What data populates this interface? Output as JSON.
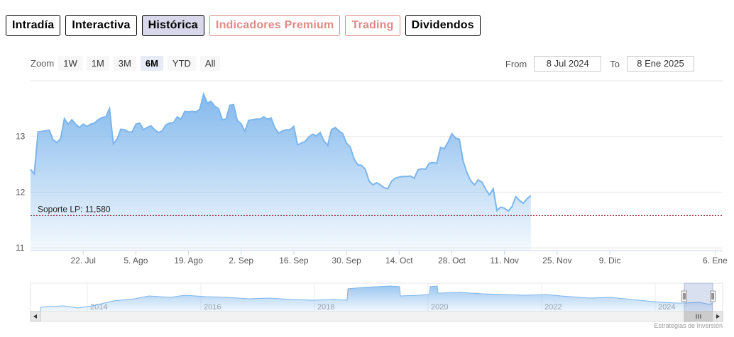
{
  "tabs": [
    {
      "label": "Intradía",
      "style": "purple"
    },
    {
      "label": "Interactiva",
      "style": "purple"
    },
    {
      "label": "Histórica",
      "style": "purple",
      "active": true
    },
    {
      "label": "Indicadores Premium",
      "style": "red"
    },
    {
      "label": "Trading",
      "style": "red"
    },
    {
      "label": "Dividendos",
      "style": "purple"
    }
  ],
  "zoom": {
    "label": "Zoom",
    "buttons": [
      "1W",
      "1M",
      "3M",
      "6M",
      "YTD",
      "All"
    ],
    "selected": "6M"
  },
  "range": {
    "from_label": "From",
    "from_value": "8 Jul 2024",
    "to_label": "To",
    "to_value": "8 Ene 2025"
  },
  "credits": "Estrategias de Inversión",
  "colors": {
    "line": "#7cb5ec",
    "support_line": "#8b1a2b",
    "purple": "#8e86b5",
    "red": "#e08a86"
  },
  "chart_data": {
    "type": "area",
    "title": "",
    "y_ticks": [
      11,
      12,
      13
    ],
    "y_range": [
      10.95,
      14.0
    ],
    "x_ticks": [
      {
        "day": 14,
        "label": "22. Jul"
      },
      {
        "day": 28,
        "label": "5. Ago"
      },
      {
        "day": 42,
        "label": "19. Ago"
      },
      {
        "day": 56,
        "label": "2. Sep"
      },
      {
        "day": 70,
        "label": "16. Sep"
      },
      {
        "day": 84,
        "label": "30. Sep"
      },
      {
        "day": 98,
        "label": "14. Oct"
      },
      {
        "day": 112,
        "label": "28. Oct"
      },
      {
        "day": 126,
        "label": "11. Nov"
      },
      {
        "day": 140,
        "label": "25. Nov"
      },
      {
        "day": 154,
        "label": "9. Dic"
      },
      {
        "day": 182,
        "label": "6. Ene"
      }
    ],
    "x_range": [
      0,
      184
    ],
    "annotation": {
      "label": "Soporte LP: 11,580",
      "value": 11.58
    },
    "series": [
      {
        "points": [
          [
            0,
            12.41
          ],
          [
            1,
            12.33
          ],
          [
            2,
            13.08
          ],
          [
            4,
            13.1
          ],
          [
            5,
            13.11
          ],
          [
            6,
            12.94
          ],
          [
            7,
            12.89
          ],
          [
            8,
            12.96
          ],
          [
            9,
            13.32
          ],
          [
            10,
            13.22
          ],
          [
            11,
            13.3
          ],
          [
            12,
            13.22
          ],
          [
            13,
            13.16
          ],
          [
            14,
            13.22
          ],
          [
            15,
            13.18
          ],
          [
            16,
            13.22
          ],
          [
            17,
            13.24
          ],
          [
            18,
            13.3
          ],
          [
            19,
            13.34
          ],
          [
            20,
            13.35
          ],
          [
            21,
            13.5
          ],
          [
            22,
            12.87
          ],
          [
            23,
            12.95
          ],
          [
            24,
            13.13
          ],
          [
            25,
            13.12
          ],
          [
            26,
            13.08
          ],
          [
            27,
            13.08
          ],
          [
            28,
            13.22
          ],
          [
            29,
            13.24
          ],
          [
            30,
            13.12
          ],
          [
            31,
            13.16
          ],
          [
            32,
            13.19
          ],
          [
            33,
            13.12
          ],
          [
            34,
            13.07
          ],
          [
            35,
            13.1
          ],
          [
            36,
            13.21
          ],
          [
            37,
            13.24
          ],
          [
            38,
            13.25
          ],
          [
            39,
            13.35
          ],
          [
            40,
            13.31
          ],
          [
            41,
            13.45
          ],
          [
            42,
            13.44
          ],
          [
            43,
            13.45
          ],
          [
            44,
            13.44
          ],
          [
            45,
            13.49
          ],
          [
            46,
            13.76
          ],
          [
            47,
            13.6
          ],
          [
            48,
            13.63
          ],
          [
            49,
            13.54
          ],
          [
            50,
            13.5
          ],
          [
            51,
            13.3
          ],
          [
            52,
            13.31
          ],
          [
            53,
            13.56
          ],
          [
            54,
            13.57
          ],
          [
            55,
            13.28
          ],
          [
            56,
            13.23
          ],
          [
            57,
            13.09
          ],
          [
            58,
            13.29
          ],
          [
            59,
            13.3
          ],
          [
            60,
            13.31
          ],
          [
            61,
            13.31
          ],
          [
            62,
            13.35
          ],
          [
            63,
            13.31
          ],
          [
            64,
            13.33
          ],
          [
            65,
            13.15
          ],
          [
            66,
            13.06
          ],
          [
            67,
            13.1
          ],
          [
            68,
            13.12
          ],
          [
            69,
            13.12
          ],
          [
            70,
            13.18
          ],
          [
            71,
            12.85
          ],
          [
            72,
            12.88
          ],
          [
            73,
            12.91
          ],
          [
            74,
            12.99
          ],
          [
            75,
            13.04
          ],
          [
            76,
            13.01
          ],
          [
            77,
            13.07
          ],
          [
            78,
            12.92
          ],
          [
            79,
            12.84
          ],
          [
            80,
            13.12
          ],
          [
            81,
            13.16
          ],
          [
            82,
            13.1
          ],
          [
            83,
            13.05
          ],
          [
            84,
            12.88
          ],
          [
            85,
            12.81
          ],
          [
            86,
            12.6
          ],
          [
            87,
            12.49
          ],
          [
            88,
            12.48
          ],
          [
            89,
            12.41
          ],
          [
            90,
            12.2
          ],
          [
            91,
            12.13
          ],
          [
            92,
            12.17
          ],
          [
            93,
            12.13
          ],
          [
            94,
            12.08
          ],
          [
            95,
            12.06
          ],
          [
            96,
            12.2
          ],
          [
            97,
            12.25
          ],
          [
            98,
            12.27
          ],
          [
            99,
            12.28
          ],
          [
            100,
            12.28
          ],
          [
            101,
            12.29
          ],
          [
            102,
            12.25
          ],
          [
            103,
            12.4
          ],
          [
            104,
            12.42
          ],
          [
            105,
            12.41
          ],
          [
            106,
            12.52
          ],
          [
            107,
            12.53
          ],
          [
            108,
            12.52
          ],
          [
            109,
            12.8
          ],
          [
            110,
            12.78
          ],
          [
            111,
            12.9
          ],
          [
            112,
            13.05
          ],
          [
            113,
            12.97
          ],
          [
            114,
            12.95
          ],
          [
            115,
            12.56
          ],
          [
            116,
            12.35
          ],
          [
            117,
            12.21
          ],
          [
            118,
            12.13
          ],
          [
            119,
            12.22
          ],
          [
            120,
            12.18
          ],
          [
            121,
            12.05
          ],
          [
            122,
            11.95
          ],
          [
            123,
            12.06
          ],
          [
            124,
            11.67
          ],
          [
            125,
            11.73
          ],
          [
            126,
            11.71
          ],
          [
            127,
            11.66
          ],
          [
            128,
            11.74
          ],
          [
            129,
            11.92
          ],
          [
            130,
            11.85
          ],
          [
            131,
            11.8
          ],
          [
            132,
            11.88
          ],
          [
            133,
            11.94
          ]
        ]
      }
    ],
    "navigator": {
      "year_labels": [
        "2014",
        "2016",
        "2018",
        "2020",
        "2022",
        "2024"
      ]
    }
  }
}
